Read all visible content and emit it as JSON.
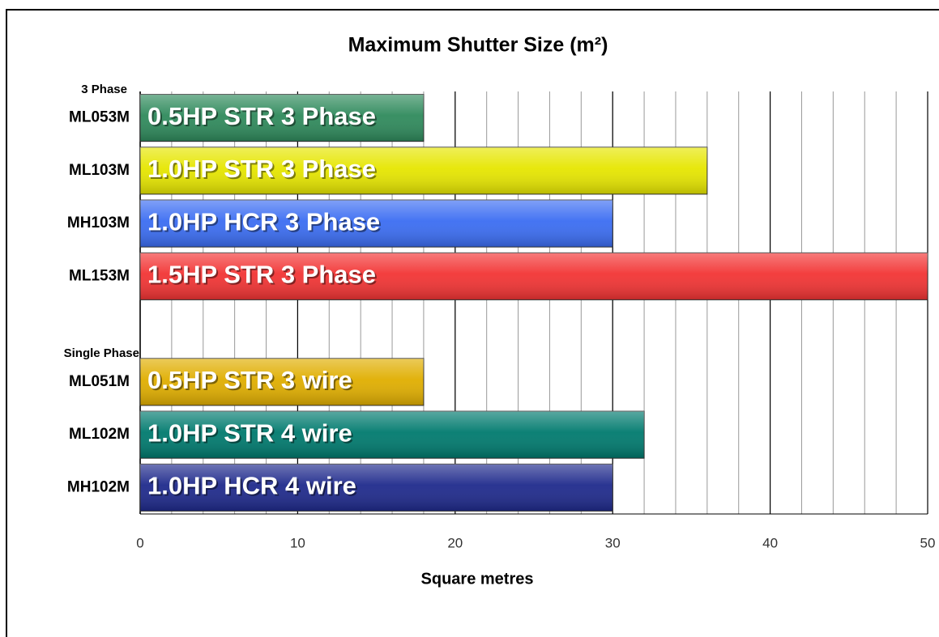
{
  "chart_data": {
    "type": "bar",
    "orientation": "horizontal",
    "title": "Maximum Shutter Size (m²)",
    "x_label": "Square metres",
    "groups": [
      {
        "name": "3 Phase",
        "categories": [
          "ML053M",
          "ML103M",
          "MH103M",
          "ML153M"
        ],
        "labels": [
          "0.5HP STR 3 Phase",
          "1.0HP STR 3 Phase",
          "1.0HP HCR 3 Phase",
          "1.5HP STR 3 Phase"
        ],
        "values": [
          18,
          36,
          30,
          50
        ],
        "colors": [
          "#2f8a5c",
          "#e6e600",
          "#3b6df2",
          "#f23434"
        ]
      },
      {
        "name": "Single Phase",
        "categories": [
          "ML051M",
          "ML102M",
          "MH102M"
        ],
        "labels": [
          "0.5HP STR 3 wire",
          "1.0HP STR 4 wire",
          "1.0HP HCR 4 wire"
        ],
        "values": [
          18,
          32,
          30
        ],
        "colors": [
          "#e0ae00",
          "#007a6e",
          "#1f2a8c"
        ]
      }
    ],
    "xlim": [
      0,
      50
    ],
    "xticks": [
      0,
      10,
      20,
      30,
      40,
      50
    ],
    "minor_grid_step": 2,
    "grid": true
  }
}
